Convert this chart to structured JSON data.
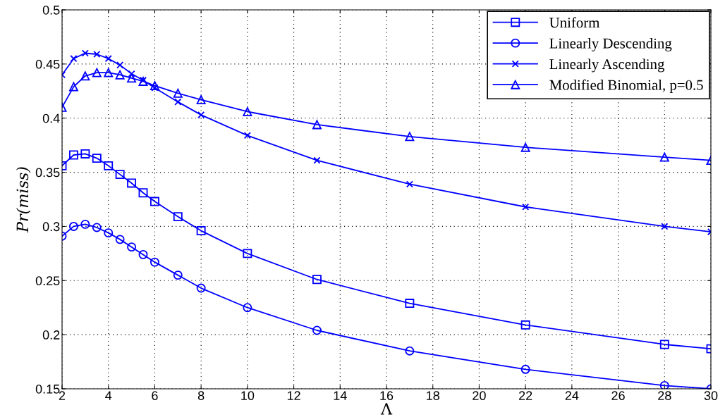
{
  "chart_data": {
    "type": "line",
    "xlabel": "Λ",
    "ylabel": "Pr(miss)",
    "x": [
      2,
      2.5,
      3,
      3.5,
      4,
      4.5,
      5,
      5.5,
      6,
      7,
      8,
      10,
      13,
      17,
      22,
      28,
      30
    ],
    "series": [
      {
        "name": "Uniform",
        "color": "#0000ff",
        "marker": "square",
        "values": [
          0.356,
          0.366,
          0.367,
          0.363,
          0.356,
          0.348,
          0.34,
          0.331,
          0.323,
          0.309,
          0.296,
          0.275,
          0.251,
          0.229,
          0.209,
          0.191,
          0.187
        ]
      },
      {
        "name": "Linearly Descending",
        "color": "#0000ff",
        "marker": "circle",
        "values": [
          0.291,
          0.3,
          0.302,
          0.299,
          0.294,
          0.288,
          0.281,
          0.274,
          0.267,
          0.255,
          0.243,
          0.225,
          0.204,
          0.185,
          0.168,
          0.153,
          0.15
        ]
      },
      {
        "name": "Linearly Ascending",
        "color": "#0000ff",
        "marker": "cross",
        "values": [
          0.44,
          0.455,
          0.46,
          0.459,
          0.455,
          0.449,
          0.441,
          0.435,
          0.428,
          0.415,
          0.403,
          0.384,
          0.361,
          0.339,
          0.318,
          0.3,
          0.295
        ]
      },
      {
        "name": "Modified Binomial, p=0.5",
        "color": "#0000ff",
        "marker": "triangle",
        "values": [
          0.41,
          0.429,
          0.439,
          0.442,
          0.442,
          0.44,
          0.437,
          0.434,
          0.43,
          0.423,
          0.417,
          0.406,
          0.394,
          0.383,
          0.373,
          0.364,
          0.361
        ]
      }
    ],
    "xlim": [
      2,
      30
    ],
    "xticks": [
      2,
      4,
      6,
      8,
      10,
      12,
      14,
      16,
      18,
      20,
      22,
      24,
      26,
      28,
      30
    ],
    "ylim": [
      0.15,
      0.5
    ],
    "yticks": [
      0.15,
      0.2,
      0.25,
      0.3,
      0.35,
      0.4,
      0.45,
      0.5
    ],
    "grid": true,
    "legend": "top right",
    "line_style": "solid"
  }
}
